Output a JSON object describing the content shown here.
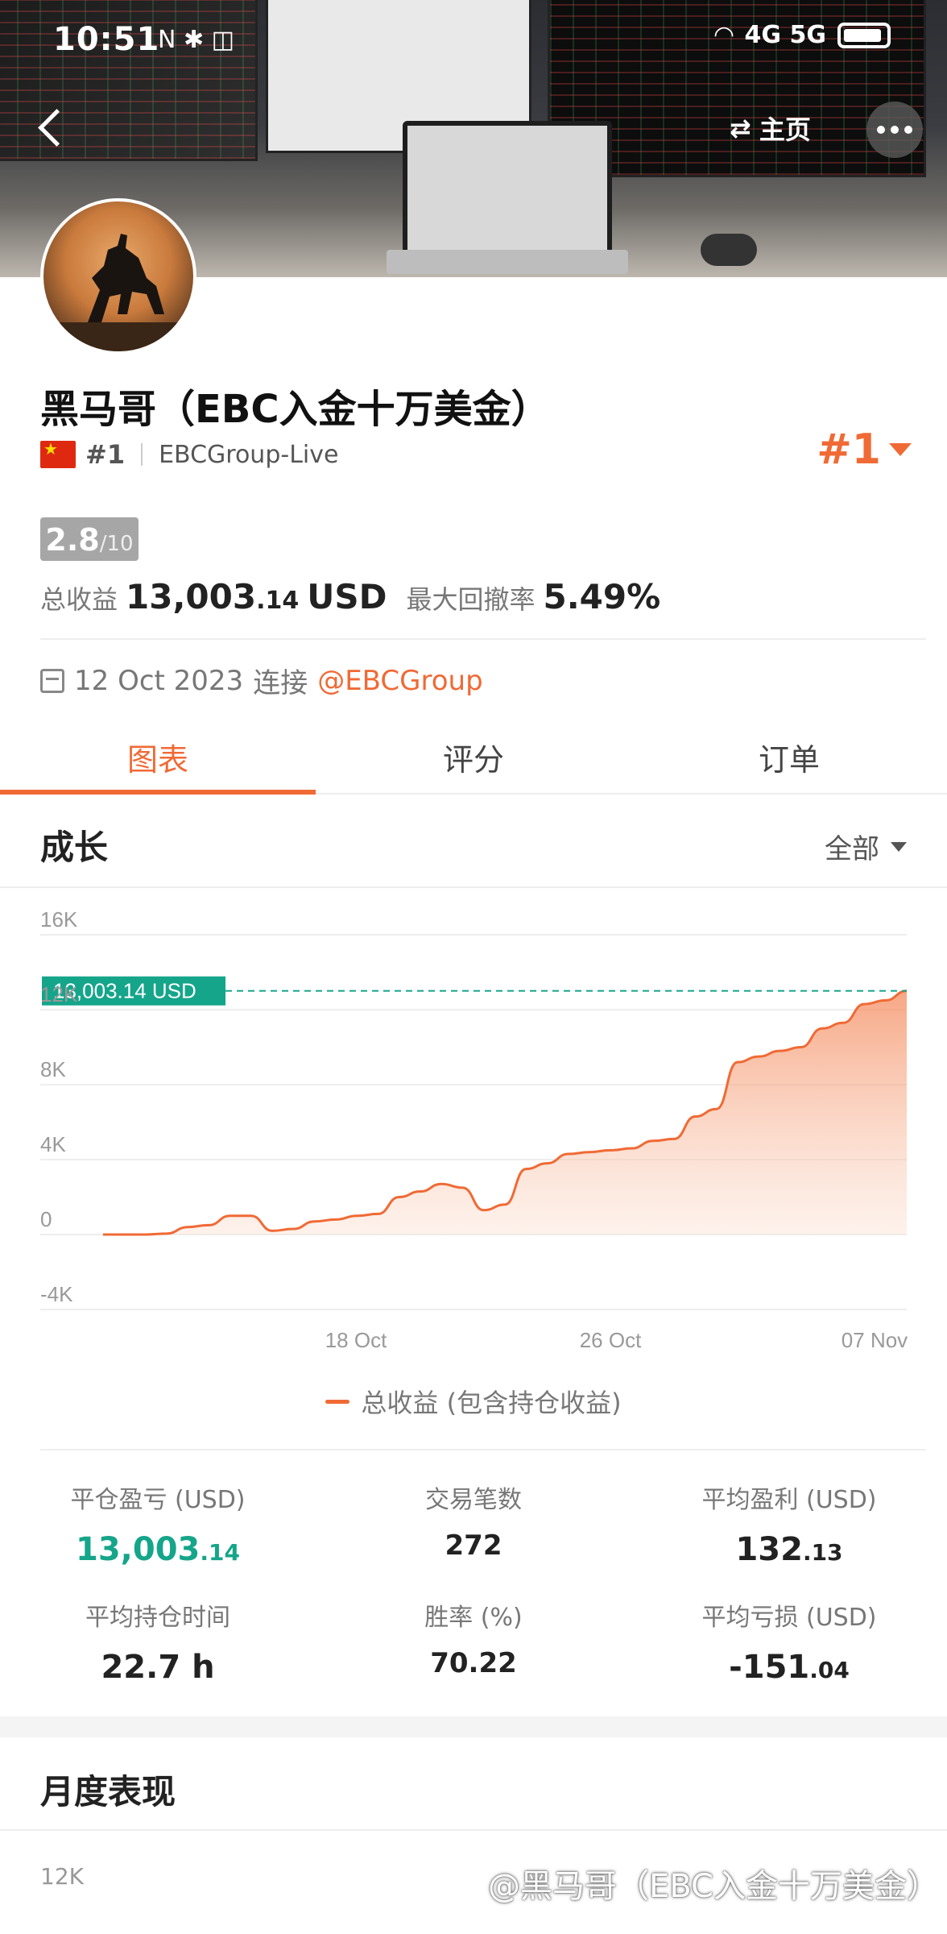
{
  "status_bar": {
    "time": "10:51",
    "icons_left": "N ✱ ◫",
    "network": "4G  5G"
  },
  "header": {
    "home_label": "主页"
  },
  "profile": {
    "name": "黑马哥（EBC入金十万美金）",
    "rank_small": "#1",
    "broker": "EBCGroup-Live",
    "rank_big": "#1",
    "score": "2.8",
    "score_max": "/10",
    "total_profit_label": "总收益",
    "total_profit_main": "13,003",
    "total_profit_dec": ".14",
    "total_profit_unit": "USD",
    "drawdown_label": "最大回撤率",
    "drawdown_value": "5.49%",
    "connect_date": "12 Oct 2023",
    "connect_label": "连接",
    "connect_account": "@EBCGroup"
  },
  "tabs": [
    {
      "label": "图表",
      "active": true
    },
    {
      "label": "评分",
      "active": false
    },
    {
      "label": "订单",
      "active": false
    }
  ],
  "growth": {
    "title": "成长",
    "filter": "全部",
    "current_label": "13,003.14 USD",
    "legend": "总收益 (包含持仓收益)"
  },
  "chart_data": {
    "type": "area",
    "ylim": [
      -4000,
      16000
    ],
    "yticks": [
      "16K",
      "12K",
      "8K",
      "4K",
      "0",
      "-4K"
    ],
    "xticks": [
      "18 Oct",
      "26 Oct",
      "07 Nov"
    ],
    "series": [
      {
        "name": "总收益 (包含持仓收益)",
        "color": "#f06a35",
        "values": [
          0,
          0,
          0,
          50,
          400,
          500,
          1000,
          1000,
          200,
          300,
          700,
          800,
          1000,
          1100,
          2000,
          2300,
          2700,
          2500,
          1300,
          1600,
          3500,
          3800,
          4300,
          4400,
          4500,
          4600,
          5000,
          5100,
          6300,
          6700,
          9200,
          9500,
          9800,
          10000,
          11000,
          11300,
          12300,
          12500,
          13003.14
        ]
      }
    ],
    "reference_line": 13003.14
  },
  "stats": [
    {
      "label": "平仓盈亏 (USD)",
      "main": "13,003",
      "dec": ".14",
      "green": true
    },
    {
      "label": "交易笔数",
      "main": "272",
      "dec": "",
      "green": false
    },
    {
      "label": "平均盈利 (USD)",
      "main": "132",
      "dec": ".13",
      "green": false
    },
    {
      "label": "平均持仓时间",
      "main": "22.7 h",
      "dec": "",
      "green": false
    },
    {
      "label": "胜率 (%)",
      "main": "70.22",
      "dec": "",
      "green": false
    },
    {
      "label": "平均亏损 (USD)",
      "main": "-151",
      "dec": ".04",
      "green": false
    }
  ],
  "monthly": {
    "title": "月度表现",
    "first_tick": "12K"
  },
  "watermark": "@黑马哥（EBC入金十万美金）"
}
